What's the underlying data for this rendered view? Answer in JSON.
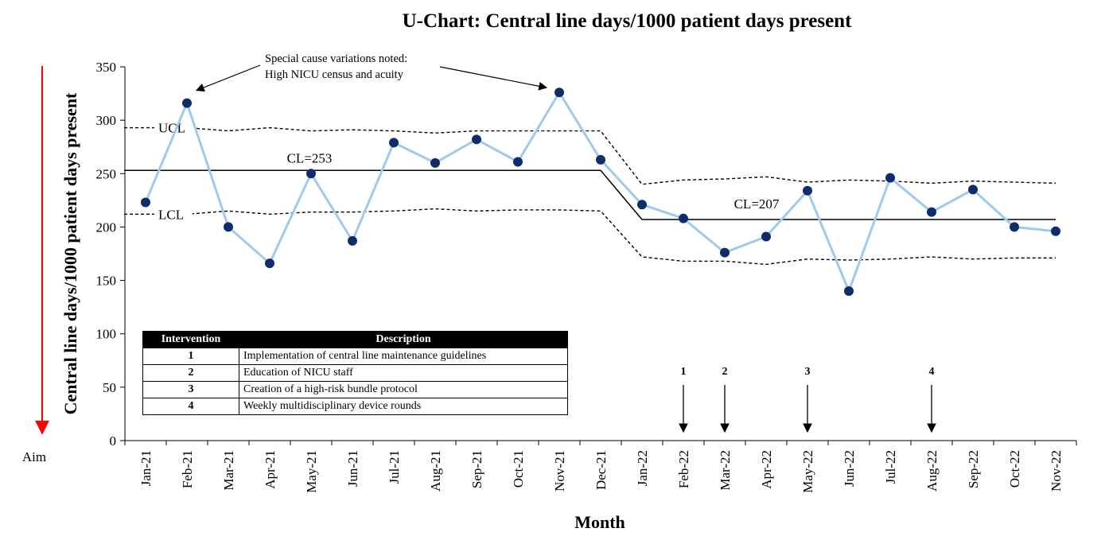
{
  "chart_data": {
    "type": "line",
    "title": "U-Chart: Central line days/1000 patient days present",
    "xlabel": "Month",
    "ylabel": "Central line days/1000 patient days present",
    "ylim": [
      0,
      350
    ],
    "yticks": [
      0,
      50,
      100,
      150,
      200,
      250,
      300,
      350
    ],
    "categories": [
      "Jan-21",
      "Feb-21",
      "Mar-21",
      "Apr-21",
      "May-21",
      "Jun-21",
      "Jul-21",
      "Aug-21",
      "Sep-21",
      "Oct-21",
      "Nov-21",
      "Dec-21",
      "Jan-22",
      "Feb-22",
      "Mar-22",
      "Apr-22",
      "May-22",
      "Jun-22",
      "Jul-22",
      "Aug-22",
      "Sep-22",
      "Oct-22",
      "Nov-22"
    ],
    "values": [
      223,
      316,
      200,
      166,
      250,
      187,
      279,
      260,
      282,
      261,
      326,
      263,
      221,
      208,
      176,
      191,
      234,
      140,
      246,
      214,
      235,
      200,
      196
    ],
    "ucl": [
      293,
      293,
      290,
      293,
      290,
      291,
      290,
      288,
      290,
      290,
      290,
      290,
      240,
      244,
      245,
      247,
      242,
      244,
      243,
      241,
      243,
      242,
      241
    ],
    "lcl": [
      212,
      212,
      215,
      212,
      214,
      214,
      215,
      217,
      215,
      216,
      216,
      215,
      172,
      168,
      168,
      165,
      170,
      169,
      170,
      172,
      170,
      171,
      171
    ],
    "cl_phases": [
      {
        "start": 0,
        "end": 11,
        "value": 253,
        "label": "CL=253"
      },
      {
        "start": 12,
        "end": 22,
        "value": 207,
        "label": "CL=207"
      }
    ],
    "ucl_label": "UCL",
    "lcl_label": "LCL",
    "colors": {
      "line": "#9ecaee",
      "marker": "#0f2d6b",
      "limits": "#000000",
      "aim_arrow": "#ff0000"
    },
    "annotation": {
      "line1": "Special cause variations noted:",
      "line2": "High NICU census and acuity"
    },
    "aim_label": "Aim",
    "intervention_markers": [
      {
        "label": "1",
        "index": 13
      },
      {
        "label": "2",
        "index": 14
      },
      {
        "label": "3",
        "index": 16
      },
      {
        "label": "4",
        "index": 19
      }
    ],
    "grid": false
  },
  "interventions_table": {
    "headers": [
      "Intervention",
      "Description"
    ],
    "rows": [
      {
        "num": "1",
        "desc": "Implementation of central line maintenance guidelines"
      },
      {
        "num": "2",
        "desc": "Education of NICU staff"
      },
      {
        "num": "3",
        "desc": "Creation of a high-risk bundle protocol"
      },
      {
        "num": "4",
        "desc": "Weekly multidisciplinary device rounds"
      }
    ]
  }
}
